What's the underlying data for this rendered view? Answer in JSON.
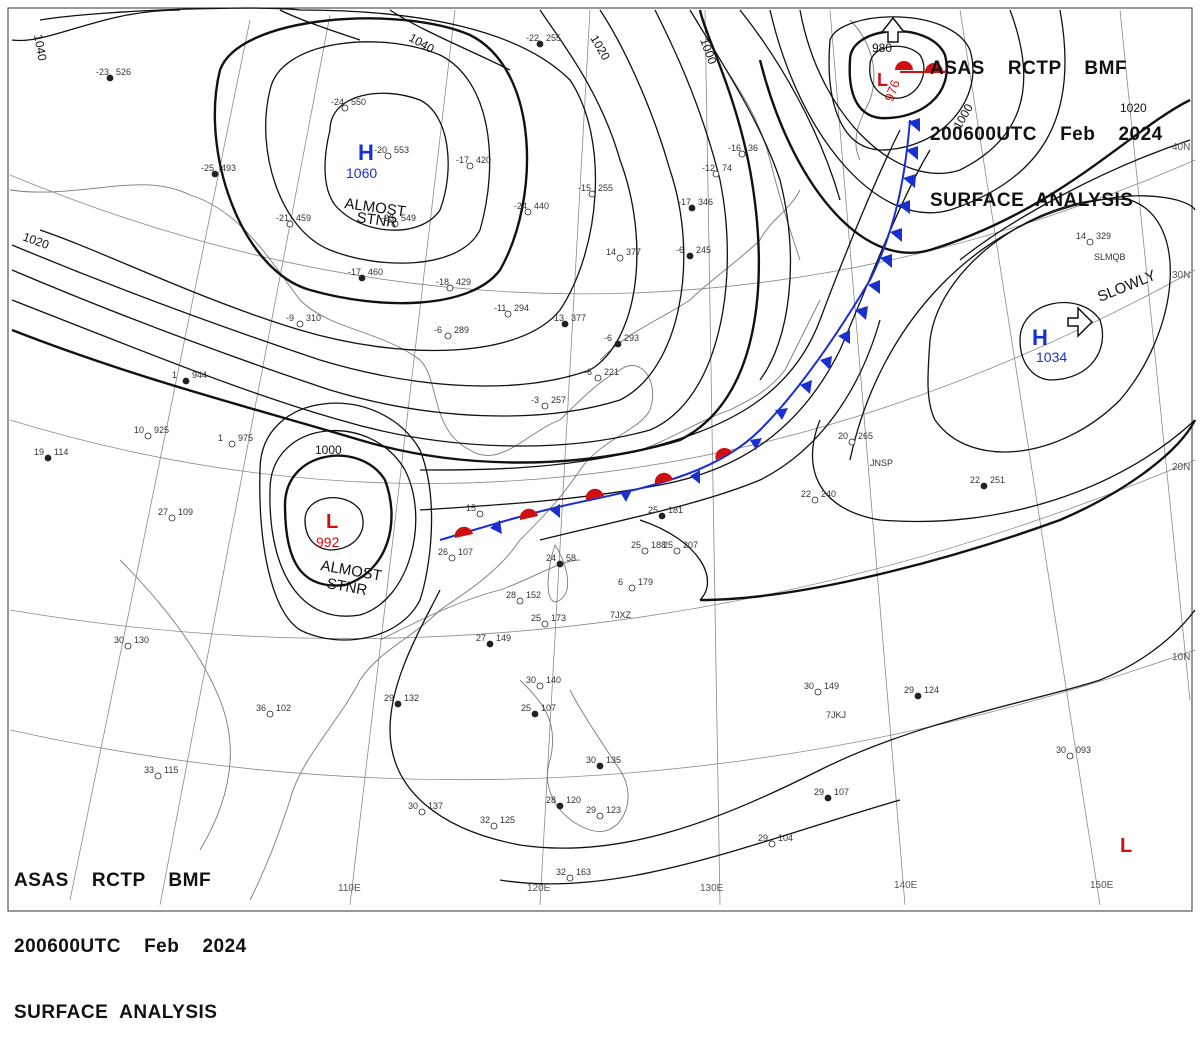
{
  "header_top": {
    "line1": "ASAS    RCTP    BMF",
    "line2": "200600UTC    Feb    2024",
    "line3": "SURFACE  ANALYSIS"
  },
  "header_bottom": {
    "line1": "ASAS    RCTP    BMF",
    "line2": "200600UTC    Feb    2024",
    "line3": "SURFACE  ANALYSIS"
  },
  "pressure_systems": [
    {
      "id": "high-north",
      "type": "H",
      "value": "1060",
      "color": "#1a2fd0"
    },
    {
      "id": "high-pacific",
      "type": "H",
      "value": "1034",
      "color": "#1a2fd0"
    },
    {
      "id": "low-south-china",
      "type": "L",
      "value": "992",
      "color": "#d01010"
    },
    {
      "id": "low-kamchatka",
      "type": "L",
      "value": "976",
      "color": "#d01010"
    },
    {
      "id": "low-se",
      "type": "L",
      "value": "",
      "color": "#d01010"
    }
  ],
  "notes": {
    "almost_stnr_1": "ALMOST",
    "almost_stnr_1b": "STNR",
    "almost_stnr_2": "ALMOST",
    "almost_stnr_2b": "STNR",
    "slowly": "SLOWLY"
  },
  "isobar_labels": [
    "1040",
    "1040",
    "1020",
    "1000",
    "980",
    "1000",
    "1020",
    "1020",
    "1000"
  ],
  "grid_labels": {
    "lon": [
      "110E",
      "120E",
      "130E",
      "140E",
      "150E"
    ],
    "lat": [
      "40N",
      "30N",
      "20N",
      "10N"
    ]
  },
  "stations": [
    {
      "t": "-23",
      "p": "526"
    },
    {
      "t": "-24",
      "p": "550"
    },
    {
      "t": "-20",
      "p": "553"
    },
    {
      "t": "-25",
      "p": "493"
    },
    {
      "t": "-21",
      "p": "459"
    },
    {
      "t": "-23",
      "p": "549"
    },
    {
      "t": "-17",
      "p": "460"
    },
    {
      "t": "-18",
      "p": "429"
    },
    {
      "t": "-11",
      "p": "294"
    },
    {
      "t": "-13",
      "p": "377"
    },
    {
      "t": "-24",
      "p": "440"
    },
    {
      "t": "-15",
      "p": "255"
    },
    {
      "t": "-22",
      "p": "255"
    },
    {
      "t": "-17",
      "p": "420"
    },
    {
      "t": "14",
      "p": "377"
    },
    {
      "t": "-17",
      "p": "346"
    },
    {
      "t": "-9",
      "p": "310"
    },
    {
      "t": "-6",
      "p": "289"
    },
    {
      "t": "1",
      "p": "944"
    },
    {
      "t": "10",
      "p": "925"
    },
    {
      "t": "1",
      "p": "975"
    },
    {
      "t": "19",
      "p": "114"
    },
    {
      "t": "27",
      "p": "109"
    },
    {
      "t": "26",
      "p": "107"
    },
    {
      "t": "24",
      "p": "58"
    },
    {
      "t": "28",
      "p": "152"
    },
    {
      "t": "25",
      "p": "173"
    },
    {
      "t": "27",
      "p": "149"
    },
    {
      "t": "30",
      "p": "130"
    },
    {
      "t": "36",
      "p": "102"
    },
    {
      "t": "29",
      "p": "132"
    },
    {
      "t": "33",
      "p": "115"
    },
    {
      "t": "30",
      "p": "140"
    },
    {
      "t": "25",
      "p": "107"
    },
    {
      "t": "30",
      "p": "137"
    },
    {
      "t": "32",
      "p": "125"
    },
    {
      "t": "28",
      "p": "120"
    },
    {
      "t": "29",
      "p": "123"
    },
    {
      "t": "32",
      "p": "163"
    },
    {
      "t": "30",
      "p": "135"
    },
    {
      "t": "25",
      "p": "188"
    },
    {
      "t": "25",
      "p": "207"
    },
    {
      "t": "25",
      "p": "181"
    },
    {
      "t": "20",
      "p": "265"
    },
    {
      "t": "22",
      "p": "240"
    },
    {
      "t": "22",
      "p": "251"
    },
    {
      "t": "14",
      "p": "329"
    },
    {
      "t": "30",
      "p": "149"
    },
    {
      "t": "29",
      "p": "124"
    },
    {
      "t": "30",
      "p": "093"
    },
    {
      "t": "29",
      "p": "104"
    },
    {
      "t": "29",
      "p": "107"
    },
    {
      "t": "-3",
      "p": "257"
    },
    {
      "t": "-6",
      "p": "221"
    },
    {
      "t": "-6",
      "p": "293"
    },
    {
      "t": "6",
      "p": "179"
    },
    {
      "t": "15",
      "p": ""
    },
    {
      "t": "-6",
      "p": "245"
    },
    {
      "t": "-12",
      "p": "74"
    },
    {
      "t": "-16",
      "p": "36"
    }
  ],
  "station_ids": [
    "7JXZ",
    "7JKJ",
    "JNSP",
    "SLMQB"
  ],
  "colors": {
    "isobar": "#111111",
    "cold_front": "#1a2fd0",
    "warm_front": "#d01010",
    "grid": "#888888",
    "coast": "#777777"
  }
}
